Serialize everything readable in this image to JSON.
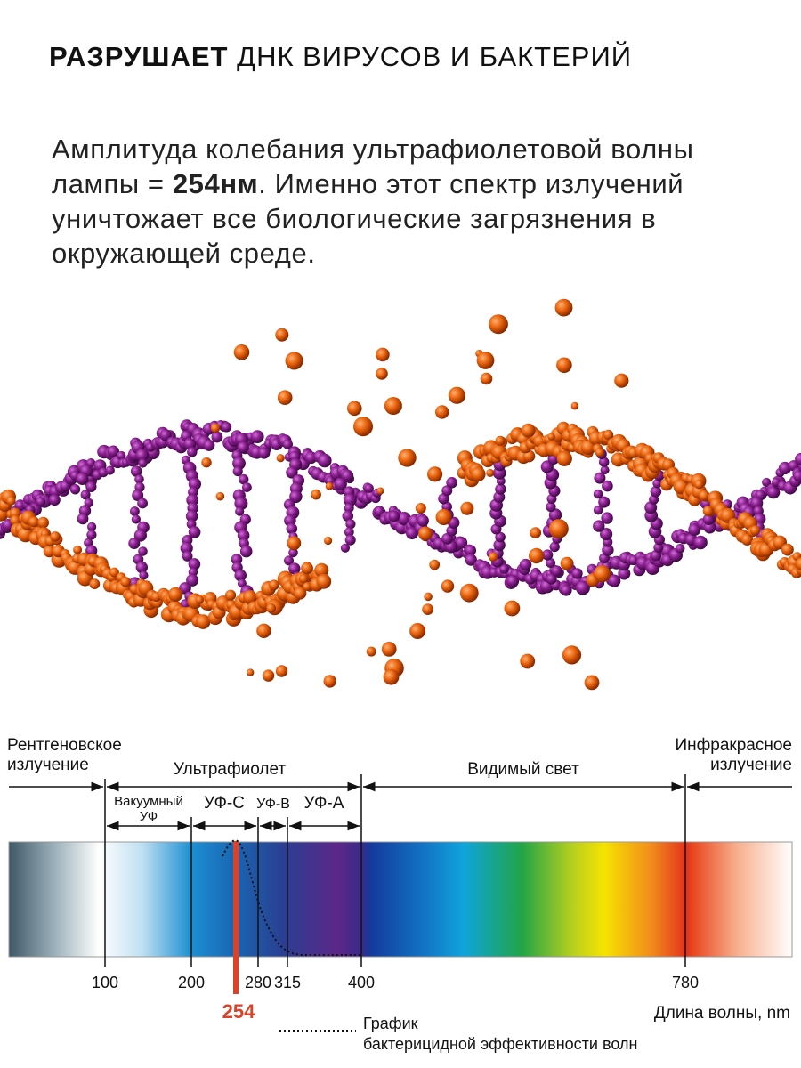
{
  "header": {
    "title_bold": "РАЗРУШАЕТ",
    "title_rest": " ДНК ВИРУСОВ И БАКТЕРИЙ"
  },
  "description": {
    "text_before": "Амплитуда колебания ультрафиолетовой волны лампы = ",
    "text_bold": "254нм",
    "text_after": ". Именно этот спектр излучений уничтожает все биологические загрязнения в окружающей среде."
  },
  "spectrum": {
    "regions": [
      "Рентгеновское излучение",
      "Ультрафиолет",
      "Видимый свет",
      "Инфракрасное излучение"
    ],
    "uv_bands": [
      "Вакуумный УФ",
      "УФ-С",
      "УФ-В",
      "УФ-А"
    ],
    "ticks": [
      "100",
      "200",
      "280",
      "315",
      "400",
      "780"
    ],
    "lamp_wavelength": "254",
    "axis_label": "Длина волны, nm",
    "legend": "График бактерицидной эффективности волн"
  }
}
